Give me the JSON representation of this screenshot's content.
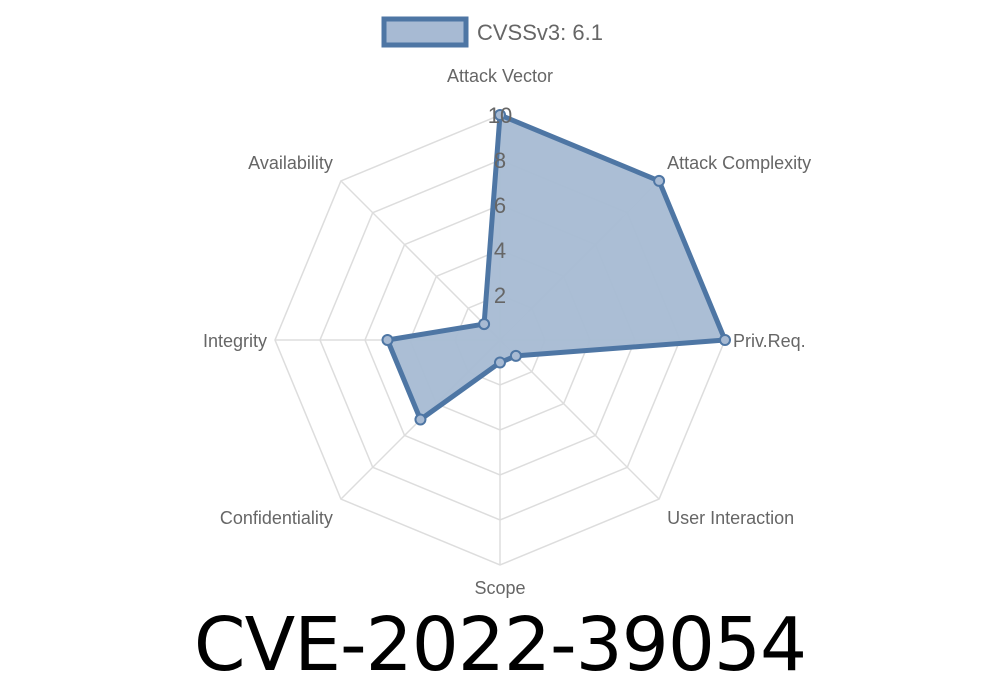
{
  "chart_data": {
    "type": "radar",
    "title": "CVE-2022-39054",
    "axes": [
      "Attack Vector",
      "Attack Complexity",
      "Priv.Req.",
      "User Interaction",
      "Scope",
      "Confidentiality",
      "Integrity",
      "Availability"
    ],
    "series": [
      {
        "name": "CVSSv3: 6.1",
        "values": [
          10,
          10,
          10,
          1,
          1,
          5,
          5,
          1
        ]
      }
    ],
    "rlim": [
      0,
      10
    ],
    "ticks": [
      "2",
      "4",
      "6",
      "8",
      "10"
    ],
    "tick_values": [
      2,
      4,
      6,
      8,
      10
    ],
    "grid": true,
    "legend_position": "top",
    "colors": {
      "stroke": "#4e76a4",
      "fill": "#a7bad3",
      "grid": "#dddddd",
      "text": "#666666"
    }
  }
}
